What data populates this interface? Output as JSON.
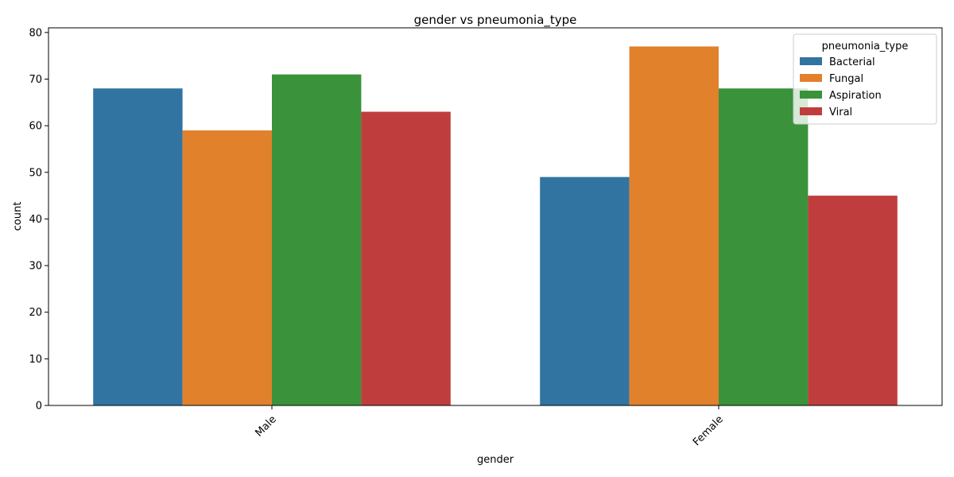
{
  "chart_data": {
    "type": "bar",
    "title": "gender vs pneumonia_type",
    "xlabel": "gender",
    "ylabel": "count",
    "categories": [
      "Male",
      "Female"
    ],
    "ylim": [
      0,
      81
    ],
    "yticks": [
      0,
      10,
      20,
      30,
      40,
      50,
      60,
      70,
      80
    ],
    "grid": false,
    "legend": {
      "title": "pneumonia_type",
      "placement": "top-right"
    },
    "series": [
      {
        "name": "Bacterial",
        "color": "#3274a1",
        "values": [
          68,
          49
        ]
      },
      {
        "name": "Fungal",
        "color": "#e1812c",
        "values": [
          59,
          77
        ]
      },
      {
        "name": "Aspiration",
        "color": "#3a923a",
        "values": [
          71,
          68
        ]
      },
      {
        "name": "Viral",
        "color": "#c03d3e",
        "values": [
          63,
          45
        ]
      }
    ]
  }
}
